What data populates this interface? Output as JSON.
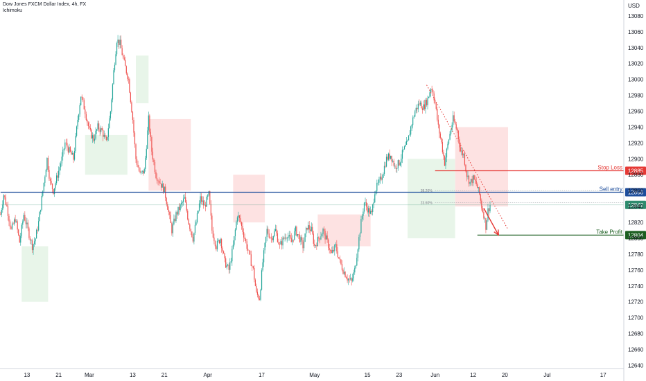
{
  "header": {
    "title": "Dow Jones FXCM Dollar Index, 4h, FX",
    "indicator": "Ichimoku",
    "currency": "USD"
  },
  "colors": {
    "up": "#26a69a",
    "down": "#ef5350",
    "cloud_bull": "#e8f5e9",
    "cloud_bear": "#fde2e2",
    "stop_loss": "#e53935",
    "sell_entry": "#1e4e9c",
    "take_profit": "#1b5e20",
    "current": "#2e8b6e",
    "arrow": "#e53935"
  },
  "chart_data": {
    "type": "candlestick",
    "title": "Dow Jones FXCM Dollar Index, 4h, FX",
    "ylabel": "USD",
    "ylim": [
      12636,
      13100
    ],
    "y_ticks": [
      12640,
      12660,
      12680,
      12700,
      12720,
      12740,
      12760,
      12780,
      12800,
      12820,
      12840,
      12860,
      12880,
      12900,
      12920,
      12940,
      12960,
      12980,
      13000,
      13020,
      13040,
      13060,
      13080
    ],
    "x_ticks": [
      {
        "label": "13",
        "bar": 25
      },
      {
        "label": "21",
        "bar": 55
      },
      {
        "label": "Mar",
        "bar": 84
      },
      {
        "label": "13",
        "bar": 125
      },
      {
        "label": "21",
        "bar": 155
      },
      {
        "label": "Apr",
        "bar": 196
      },
      {
        "label": "17",
        "bar": 247
      },
      {
        "label": "May",
        "bar": 297
      },
      {
        "label": "15",
        "bar": 347
      },
      {
        "label": "23",
        "bar": 377
      },
      {
        "label": "Jun",
        "bar": 411
      },
      {
        "label": "12",
        "bar": 447
      },
      {
        "label": "20",
        "bar": 477
      },
      {
        "label": "Jul",
        "bar": 517
      },
      {
        "label": "17",
        "bar": 570
      }
    ],
    "bar_count": 590,
    "last_bar": 463,
    "path": [
      [
        0,
        12830
      ],
      [
        3,
        12855
      ],
      [
        6,
        12840
      ],
      [
        10,
        12810
      ],
      [
        14,
        12825
      ],
      [
        18,
        12795
      ],
      [
        22,
        12830
      ],
      [
        26,
        12810
      ],
      [
        30,
        12790
      ],
      [
        33,
        12800
      ],
      [
        36,
        12820
      ],
      [
        40,
        12860
      ],
      [
        44,
        12900
      ],
      [
        47,
        12870
      ],
      [
        50,
        12860
      ],
      [
        54,
        12880
      ],
      [
        58,
        12900
      ],
      [
        61,
        12920
      ],
      [
        65,
        12910
      ],
      [
        69,
        12900
      ],
      [
        73,
        12950
      ],
      [
        76,
        12980
      ],
      [
        80,
        12960
      ],
      [
        84,
        12935
      ],
      [
        88,
        12925
      ],
      [
        92,
        12940
      ],
      [
        96,
        12935
      ],
      [
        100,
        12920
      ],
      [
        104,
        12960
      ],
      [
        107,
        13010
      ],
      [
        110,
        13050
      ],
      [
        113,
        13045
      ],
      [
        117,
        13020
      ],
      [
        121,
        13000
      ],
      [
        125,
        12950
      ],
      [
        128,
        12900
      ],
      [
        132,
        12880
      ],
      [
        136,
        12885
      ],
      [
        140,
        12950
      ],
      [
        143,
        12910
      ],
      [
        147,
        12880
      ],
      [
        151,
        12870
      ],
      [
        155,
        12860
      ],
      [
        158,
        12840
      ],
      [
        162,
        12810
      ],
      [
        166,
        12830
      ],
      [
        170,
        12840
      ],
      [
        174,
        12850
      ],
      [
        178,
        12820
      ],
      [
        182,
        12800
      ],
      [
        185,
        12820
      ],
      [
        189,
        12850
      ],
      [
        193,
        12840
      ],
      [
        197,
        12855
      ],
      [
        200,
        12810
      ],
      [
        204,
        12790
      ],
      [
        208,
        12800
      ],
      [
        212,
        12770
      ],
      [
        216,
        12760
      ],
      [
        220,
        12790
      ],
      [
        224,
        12830
      ],
      [
        227,
        12820
      ],
      [
        231,
        12800
      ],
      [
        235,
        12780
      ],
      [
        239,
        12760
      ],
      [
        242,
        12730
      ],
      [
        245,
        12725
      ],
      [
        248,
        12770
      ],
      [
        252,
        12810
      ],
      [
        256,
        12800
      ],
      [
        260,
        12810
      ],
      [
        264,
        12790
      ],
      [
        268,
        12800
      ],
      [
        271,
        12805
      ],
      [
        275,
        12795
      ],
      [
        279,
        12810
      ],
      [
        283,
        12800
      ],
      [
        286,
        12790
      ],
      [
        290,
        12815
      ],
      [
        294,
        12810
      ],
      [
        297,
        12790
      ],
      [
        301,
        12800
      ],
      [
        305,
        12810
      ],
      [
        309,
        12795
      ],
      [
        313,
        12780
      ],
      [
        317,
        12790
      ],
      [
        321,
        12770
      ],
      [
        324,
        12760
      ],
      [
        328,
        12750
      ],
      [
        332,
        12745
      ],
      [
        335,
        12760
      ],
      [
        338,
        12790
      ],
      [
        341,
        12820
      ],
      [
        344,
        12845
      ],
      [
        348,
        12835
      ],
      [
        351,
        12830
      ],
      [
        354,
        12860
      ],
      [
        358,
        12870
      ],
      [
        361,
        12880
      ],
      [
        365,
        12900
      ],
      [
        369,
        12905
      ],
      [
        373,
        12890
      ],
      [
        377,
        12895
      ],
      [
        381,
        12910
      ],
      [
        385,
        12920
      ],
      [
        388,
        12940
      ],
      [
        392,
        12960
      ],
      [
        396,
        12970
      ],
      [
        400,
        12965
      ],
      [
        404,
        12975
      ],
      [
        407,
        12990
      ],
      [
        409,
        12985
      ],
      [
        411,
        12970
      ],
      [
        414,
        12940
      ],
      [
        417,
        12920
      ],
      [
        420,
        12895
      ],
      [
        424,
        12925
      ],
      [
        428,
        12950
      ],
      [
        432,
        12935
      ],
      [
        435,
        12910
      ],
      [
        438,
        12905
      ],
      [
        441,
        12880
      ],
      [
        444,
        12870
      ],
      [
        447,
        12875
      ],
      [
        450,
        12868
      ],
      [
        453,
        12855
      ],
      [
        455,
        12840
      ],
      [
        457,
        12830
      ],
      [
        459,
        12815
      ],
      [
        461,
        12835
      ],
      [
        463,
        12842
      ]
    ],
    "ichimoku_cloud": {
      "bullish_spans": [
        {
          "from_bar": 20,
          "to_bar": 45,
          "low": 12720,
          "high": 12790
        },
        {
          "from_bar": 80,
          "to_bar": 120,
          "low": 12880,
          "high": 12930
        },
        {
          "from_bar": 128,
          "to_bar": 140,
          "low": 12970,
          "high": 13030
        },
        {
          "from_bar": 385,
          "to_bar": 430,
          "low": 12800,
          "high": 12900
        }
      ],
      "bearish_spans": [
        {
          "from_bar": 140,
          "to_bar": 180,
          "low": 12860,
          "high": 12950
        },
        {
          "from_bar": 220,
          "to_bar": 250,
          "low": 12820,
          "high": 12880
        },
        {
          "from_bar": 300,
          "to_bar": 350,
          "low": 12790,
          "high": 12830
        },
        {
          "from_bar": 430,
          "to_bar": 480,
          "low": 12840,
          "high": 12940
        }
      ]
    },
    "levels": [
      {
        "name": "Stop Loss",
        "value": 12885,
        "label": "12885",
        "text_label": "Stop Loss",
        "color": "#e53935",
        "from_bar": 411
      },
      {
        "name": "Sell entry",
        "value": 12858,
        "label": "12858",
        "text_label": "Sell entry",
        "color": "#1e4e9c",
        "from_bar": 0
      },
      {
        "name": "current",
        "value": 12842,
        "label": "12842",
        "text_label": "",
        "color": "#2e8b6e",
        "from_bar": 0
      },
      {
        "name": "Take Profit",
        "value": 12804,
        "label": "12804",
        "text_label": "Take Profit",
        "color": "#1b5e20",
        "from_bar": 451
      }
    ],
    "fib_levels": [
      {
        "label": "38.20%",
        "value": 12860
      },
      {
        "label": "23.60%",
        "value": 12845
      }
    ],
    "trend_line": {
      "from": [
        403,
        12993
      ],
      "to": [
        480,
        12811
      ]
    },
    "arrow": {
      "from": [
        457,
        12838
      ],
      "to": [
        471,
        12804
      ]
    }
  }
}
